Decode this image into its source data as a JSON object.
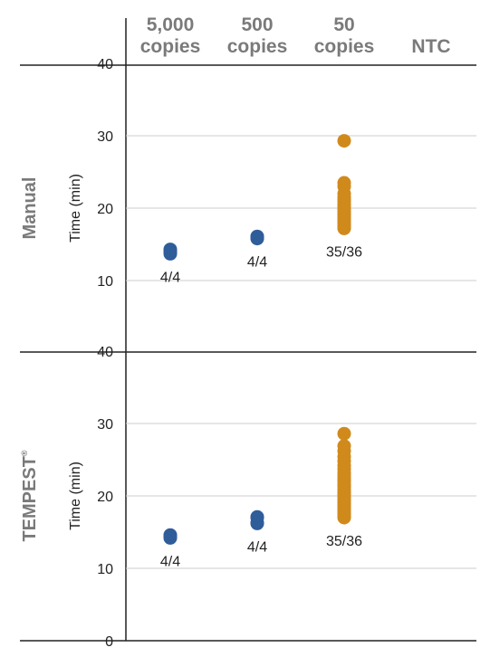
{
  "chart_data": {
    "type": "scatter",
    "columns": [
      {
        "line1": "5,000",
        "line2": "copies"
      },
      {
        "line1": "500",
        "line2": "copies"
      },
      {
        "line1": "50",
        "line2": "copies"
      },
      {
        "line1": "NTC",
        "line2": ""
      }
    ],
    "ylabel": "Time (min)",
    "colors": {
      "high": "#2f5d9a",
      "low": "#d08a1c",
      "grid": "#cccccc",
      "axis": "#222222"
    },
    "panels": [
      {
        "name": "Manual",
        "trademark": "",
        "yticks": [
          "40",
          "30",
          "20",
          "10"
        ],
        "ylim": [
          5,
          40
        ],
        "series": [
          {
            "column": 0,
            "color": "high",
            "values": [
              14.3,
              14.1,
              13.9,
              13.7
            ],
            "count_label": "4/4"
          },
          {
            "column": 1,
            "color": "high",
            "values": [
              16.1,
              15.9,
              16.0,
              15.8
            ],
            "count_label": "4/4"
          },
          {
            "column": 2,
            "color": "low",
            "values": [
              29.3,
              23.5,
              23.0,
              22.0,
              21.5,
              21.0,
              20.6,
              20.2,
              19.9,
              19.6,
              19.3,
              19.0,
              18.8,
              18.6,
              18.4,
              18.2,
              18.0,
              17.8,
              17.6,
              17.4,
              17.2,
              17.3,
              17.5,
              17.7,
              17.9,
              18.1,
              18.3,
              18.5,
              18.7,
              18.9,
              19.1,
              19.4,
              19.7,
              20.4,
              21.2
            ],
            "count_label": "35/36"
          }
        ]
      },
      {
        "name": "TEMPEST",
        "trademark": "®",
        "yticks": [
          "40",
          "30",
          "20",
          "10",
          "0"
        ],
        "ylim": [
          0,
          40
        ],
        "series": [
          {
            "column": 0,
            "color": "high",
            "values": [
              14.6,
              14.4,
              14.2,
              14.5
            ],
            "count_label": "4/4"
          },
          {
            "column": 1,
            "color": "high",
            "values": [
              17.1,
              16.2,
              17.0,
              16.3
            ],
            "count_label": "4/4"
          },
          {
            "column": 2,
            "color": "low",
            "values": [
              28.6,
              26.9,
              26.2,
              25.4,
              24.8,
              24.2,
              23.7,
              23.2,
              22.8,
              22.4,
              22.0,
              21.6,
              21.2,
              20.8,
              20.4,
              20.0,
              19.6,
              19.2,
              18.8,
              18.4,
              18.0,
              17.6,
              17.2,
              17.0,
              17.4,
              17.8,
              18.2,
              18.6,
              19.0,
              19.4,
              19.8,
              20.2,
              20.6,
              21.4,
              22.2
            ],
            "count_label": "35/36"
          }
        ]
      }
    ]
  }
}
